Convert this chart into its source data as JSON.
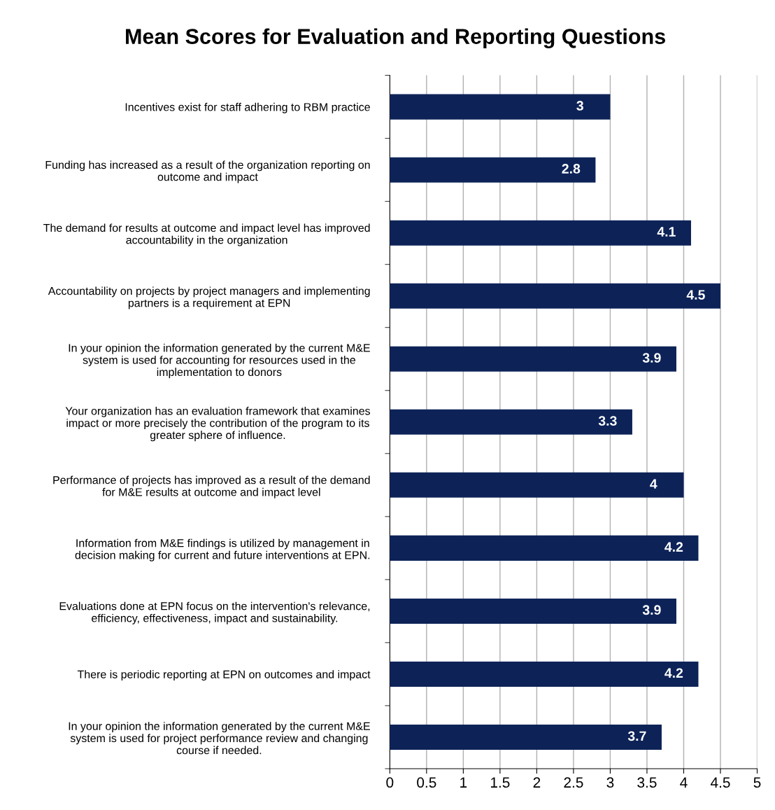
{
  "chart_data": {
    "type": "bar",
    "orientation": "horizontal",
    "title": "Mean Scores for Evaluation and Reporting Questions",
    "categories": [
      "Incentives exist for staff adhering to RBM practice",
      "Funding has increased as a result of the organization reporting on\noutcome and impact",
      "The demand for results at outcome and impact level has improved\naccountability in the organization",
      "Accountability on projects by project managers and implementing\npartners is a requirement at EPN",
      "In your opinion the information generated by the current M&E\nsystem is used for accounting for resources used in the\nimplementation to donors",
      "Your organization has an evaluation framework that examines\nimpact or more precisely the contribution of the program to its\ngreater sphere of influence.",
      "Performance of projects has improved as a result of the demand\nfor M&E results at outcome and impact level",
      "Information from M&E findings is utilized by management in\ndecision making for current and future interventions at EPN.",
      "Evaluations done at EPN focus on the intervention's relevance,\nefficiency, effectiveness, impact and sustainability.",
      "There is periodic reporting at EPN on outcomes and impact",
      "In your opinion the information generated by the current M&E\nsystem is used for project performance review and changing\ncourse if needed."
    ],
    "values": [
      3,
      2.8,
      4.1,
      4.5,
      3.9,
      3.3,
      4,
      4.2,
      3.9,
      4.2,
      3.7
    ],
    "color": "#0d2358",
    "data_labels": true,
    "xlim": [
      0,
      5
    ],
    "xticks": [
      0,
      0.5,
      1,
      1.5,
      2,
      2.5,
      3,
      3.5,
      4,
      4.5,
      5
    ],
    "grid": "x",
    "legend": false
  }
}
